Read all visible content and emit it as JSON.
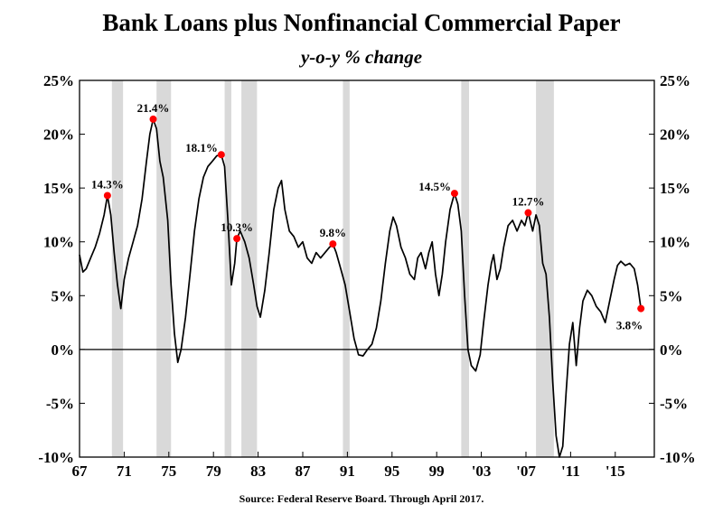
{
  "chart_data": {
    "type": "line",
    "title": "Bank Loans plus Nonfinancial Commercial Paper",
    "subtitle": "y-o-y % change",
    "source": "Source: Federal Reserve Board. Through April 2017.",
    "xlim": [
      1967,
      2018.5
    ],
    "ylim": [
      -10,
      25
    ],
    "x_ticks": [
      {
        "x": 1967,
        "label": "67"
      },
      {
        "x": 1971,
        "label": "71"
      },
      {
        "x": 1975,
        "label": "75"
      },
      {
        "x": 1979,
        "label": "79"
      },
      {
        "x": 1983,
        "label": "83"
      },
      {
        "x": 1987,
        "label": "87"
      },
      {
        "x": 1991,
        "label": "91"
      },
      {
        "x": 1995,
        "label": "95"
      },
      {
        "x": 1999,
        "label": "99"
      },
      {
        "x": 2003,
        "label": "'03"
      },
      {
        "x": 2007,
        "label": "'07"
      },
      {
        "x": 2011,
        "label": "'11"
      },
      {
        "x": 2015,
        "label": "'15"
      }
    ],
    "y_ticks": [
      {
        "y": 25,
        "label": "25%"
      },
      {
        "y": 20,
        "label": "20%"
      },
      {
        "y": 15,
        "label": "15%"
      },
      {
        "y": 10,
        "label": "10%"
      },
      {
        "y": 5,
        "label": "5%"
      },
      {
        "y": 0,
        "label": "0%"
      },
      {
        "y": -5,
        "label": "-5%"
      },
      {
        "y": -10,
        "label": "-10%"
      }
    ],
    "zero_line": 0,
    "recessions": [
      [
        1969.9,
        1970.9
      ],
      [
        1973.9,
        1975.2
      ],
      [
        1980.0,
        1980.6
      ],
      [
        1981.5,
        1982.9
      ],
      [
        1990.6,
        1991.2
      ],
      [
        2001.2,
        2001.9
      ],
      [
        2007.9,
        2009.5
      ]
    ],
    "series": [
      {
        "points": [
          [
            1967.0,
            8.8
          ],
          [
            1967.3,
            7.2
          ],
          [
            1967.6,
            7.5
          ],
          [
            1968.0,
            8.5
          ],
          [
            1968.4,
            9.5
          ],
          [
            1968.8,
            10.8
          ],
          [
            1969.2,
            12.5
          ],
          [
            1969.5,
            14.3
          ],
          [
            1969.8,
            12.5
          ],
          [
            1970.1,
            9.0
          ],
          [
            1970.4,
            6.0
          ],
          [
            1970.7,
            3.8
          ],
          [
            1971.0,
            6.5
          ],
          [
            1971.4,
            8.5
          ],
          [
            1971.8,
            10.0
          ],
          [
            1972.2,
            11.5
          ],
          [
            1972.6,
            14.0
          ],
          [
            1973.0,
            17.5
          ],
          [
            1973.3,
            20.0
          ],
          [
            1973.6,
            21.4
          ],
          [
            1973.9,
            20.5
          ],
          [
            1974.2,
            17.5
          ],
          [
            1974.5,
            16.0
          ],
          [
            1974.9,
            12.0
          ],
          [
            1975.2,
            6.0
          ],
          [
            1975.5,
            1.5
          ],
          [
            1975.8,
            -1.2
          ],
          [
            1976.1,
            0.0
          ],
          [
            1976.5,
            3.0
          ],
          [
            1976.9,
            7.0
          ],
          [
            1977.3,
            11.0
          ],
          [
            1977.7,
            14.0
          ],
          [
            1978.1,
            16.0
          ],
          [
            1978.5,
            17.0
          ],
          [
            1978.9,
            17.5
          ],
          [
            1979.3,
            18.0
          ],
          [
            1979.7,
            18.1
          ],
          [
            1980.0,
            17.0
          ],
          [
            1980.3,
            12.0
          ],
          [
            1980.6,
            6.0
          ],
          [
            1980.9,
            8.0
          ],
          [
            1981.1,
            10.3
          ],
          [
            1981.4,
            11.0
          ],
          [
            1981.8,
            10.0
          ],
          [
            1982.2,
            8.5
          ],
          [
            1982.6,
            6.0
          ],
          [
            1982.9,
            4.0
          ],
          [
            1983.2,
            3.0
          ],
          [
            1983.6,
            5.5
          ],
          [
            1984.0,
            9.0
          ],
          [
            1984.4,
            13.0
          ],
          [
            1984.8,
            15.0
          ],
          [
            1985.1,
            15.7
          ],
          [
            1985.4,
            13.0
          ],
          [
            1985.8,
            11.0
          ],
          [
            1986.2,
            10.5
          ],
          [
            1986.6,
            9.5
          ],
          [
            1987.0,
            10.0
          ],
          [
            1987.4,
            8.5
          ],
          [
            1987.8,
            8.0
          ],
          [
            1988.2,
            9.0
          ],
          [
            1988.6,
            8.5
          ],
          [
            1989.0,
            9.0
          ],
          [
            1989.4,
            9.5
          ],
          [
            1989.7,
            9.8
          ],
          [
            1990.0,
            9.0
          ],
          [
            1990.4,
            7.5
          ],
          [
            1990.8,
            6.0
          ],
          [
            1991.2,
            3.5
          ],
          [
            1991.6,
            1.0
          ],
          [
            1992.0,
            -0.5
          ],
          [
            1992.4,
            -0.6
          ],
          [
            1992.8,
            0.0
          ],
          [
            1993.2,
            0.5
          ],
          [
            1993.6,
            2.0
          ],
          [
            1994.0,
            4.5
          ],
          [
            1994.4,
            8.0
          ],
          [
            1994.8,
            11.0
          ],
          [
            1995.1,
            12.3
          ],
          [
            1995.4,
            11.5
          ],
          [
            1995.8,
            9.5
          ],
          [
            1996.2,
            8.5
          ],
          [
            1996.6,
            7.0
          ],
          [
            1997.0,
            6.5
          ],
          [
            1997.3,
            8.5
          ],
          [
            1997.6,
            9.0
          ],
          [
            1998.0,
            7.5
          ],
          [
            1998.3,
            9.0
          ],
          [
            1998.6,
            10.0
          ],
          [
            1998.9,
            7.0
          ],
          [
            1999.2,
            5.0
          ],
          [
            1999.5,
            7.0
          ],
          [
            1999.8,
            10.0
          ],
          [
            2000.2,
            13.0
          ],
          [
            2000.6,
            14.5
          ],
          [
            2000.9,
            13.5
          ],
          [
            2001.2,
            11.0
          ],
          [
            2001.5,
            5.0
          ],
          [
            2001.8,
            0.0
          ],
          [
            2002.1,
            -1.5
          ],
          [
            2002.5,
            -2.0
          ],
          [
            2002.9,
            -0.5
          ],
          [
            2003.2,
            2.5
          ],
          [
            2003.6,
            6.0
          ],
          [
            2003.9,
            8.0
          ],
          [
            2004.1,
            8.8
          ],
          [
            2004.4,
            6.5
          ],
          [
            2004.7,
            7.5
          ],
          [
            2005.0,
            9.5
          ],
          [
            2005.4,
            11.5
          ],
          [
            2005.8,
            12.0
          ],
          [
            2006.2,
            11.0
          ],
          [
            2006.6,
            12.0
          ],
          [
            2006.9,
            11.5
          ],
          [
            2007.2,
            12.7
          ],
          [
            2007.6,
            11.0
          ],
          [
            2007.9,
            12.5
          ],
          [
            2008.2,
            11.5
          ],
          [
            2008.5,
            8.0
          ],
          [
            2008.8,
            7.0
          ],
          [
            2009.1,
            3.0
          ],
          [
            2009.4,
            -3.0
          ],
          [
            2009.7,
            -8.0
          ],
          [
            2010.0,
            -10.0
          ],
          [
            2010.3,
            -9.0
          ],
          [
            2010.6,
            -4.0
          ],
          [
            2010.9,
            0.5
          ],
          [
            2011.2,
            2.5
          ],
          [
            2011.5,
            -1.5
          ],
          [
            2011.8,
            2.0
          ],
          [
            2012.1,
            4.5
          ],
          [
            2012.5,
            5.5
          ],
          [
            2012.9,
            5.0
          ],
          [
            2013.3,
            4.0
          ],
          [
            2013.7,
            3.5
          ],
          [
            2014.1,
            2.5
          ],
          [
            2014.5,
            4.5
          ],
          [
            2014.9,
            6.5
          ],
          [
            2015.2,
            7.8
          ],
          [
            2015.5,
            8.2
          ],
          [
            2015.9,
            7.8
          ],
          [
            2016.3,
            8.0
          ],
          [
            2016.7,
            7.5
          ],
          [
            2017.0,
            6.0
          ],
          [
            2017.3,
            3.8
          ]
        ]
      }
    ],
    "annotations": [
      {
        "x": 1969.5,
        "y": 14.3,
        "label": "14.3%",
        "pos": "above"
      },
      {
        "x": 1973.6,
        "y": 21.4,
        "label": "21.4%",
        "pos": "above"
      },
      {
        "x": 1979.7,
        "y": 18.1,
        "label": "18.1%",
        "pos": "above-left"
      },
      {
        "x": 1981.1,
        "y": 10.3,
        "label": "10.3%",
        "pos": "above"
      },
      {
        "x": 1989.7,
        "y": 9.8,
        "label": "9.8%",
        "pos": "above"
      },
      {
        "x": 2000.6,
        "y": 14.5,
        "label": "14.5%",
        "pos": "above-left"
      },
      {
        "x": 2007.2,
        "y": 12.7,
        "label": "12.7%",
        "pos": "above"
      },
      {
        "x": 2017.3,
        "y": 3.8,
        "label": "3.8%",
        "pos": "below-left"
      }
    ],
    "colors": {
      "line": "#000000",
      "recession": "#d9d9d9",
      "marker": "#ff0000"
    }
  }
}
